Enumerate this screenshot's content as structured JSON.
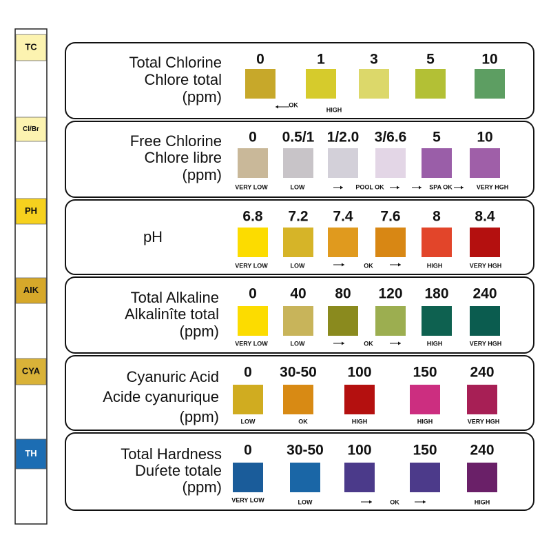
{
  "strip": {
    "pads": [
      {
        "label": "TC",
        "color": "#fcf3b0"
      },
      {
        "label": "Cl/Br",
        "color": "#fcf3b0"
      },
      {
        "label": "PH",
        "color": "#f6d11e"
      },
      {
        "label": "AIK",
        "color": "#d6a82a"
      },
      {
        "label": "CYA",
        "color": "#d9b238"
      },
      {
        "label": "TH",
        "color": "#1c6db3"
      }
    ]
  },
  "panels": [
    {
      "title": [
        "Total Chlorine",
        "Chlore total",
        "(ppm)"
      ],
      "swatches": [
        {
          "value": "0",
          "color": "#c7a82a"
        },
        {
          "value": "1",
          "color": "#d6cb2c"
        },
        {
          "value": "3",
          "color": "#dcd86a"
        },
        {
          "value": "5",
          "color": "#b3c035"
        },
        {
          "value": "10",
          "color": "#5d9e62"
        }
      ],
      "notes": [
        "OK",
        "HIGH"
      ]
    },
    {
      "title": [
        "Free Chlorine",
        "Chlore libre",
        "(ppm)"
      ],
      "swatches": [
        {
          "value": "0",
          "color": "#c9b899"
        },
        {
          "value": "0.5/1",
          "color": "#c8c4c8"
        },
        {
          "value": "1/2.0",
          "color": "#d3d0d9"
        },
        {
          "value": "3/6.6",
          "color": "#e3d6e6"
        },
        {
          "value": "5",
          "color": "#9a5ea8"
        },
        {
          "value": "10",
          "color": "#9f5fa8"
        }
      ],
      "notes": [
        "VERY LOW",
        "LOW",
        "POOL OK",
        "SPA OK",
        "VERY HGH"
      ]
    },
    {
      "title": [
        "pH"
      ],
      "swatches": [
        {
          "value": "6.8",
          "color": "#fcdc00"
        },
        {
          "value": "7.2",
          "color": "#d6b428"
        },
        {
          "value": "7.4",
          "color": "#e09a1e"
        },
        {
          "value": "7.6",
          "color": "#d88714"
        },
        {
          "value": "8",
          "color": "#e2452a"
        },
        {
          "value": "8.4",
          "color": "#b4100f"
        }
      ],
      "notes": [
        "VERY LOW",
        "LOW",
        "OK",
        "HIGH",
        "VERY HGH"
      ]
    },
    {
      "title": [
        "Total Alkaline",
        "Alkalinîte total",
        "(ppm)"
      ],
      "swatches": [
        {
          "value": "0",
          "color": "#fcdc00"
        },
        {
          "value": "40",
          "color": "#c8b45a"
        },
        {
          "value": "80",
          "color": "#8a8a1e"
        },
        {
          "value": "120",
          "color": "#9cae50"
        },
        {
          "value": "180",
          "color": "#0e6150"
        },
        {
          "value": "240",
          "color": "#0b5c4f"
        }
      ],
      "notes": [
        "VERY LOW",
        "LOW",
        "OK",
        "HIGH",
        "VERY HGH"
      ]
    },
    {
      "title": [
        "Cyanuric Acid",
        "Acide cyanurique",
        "(ppm)"
      ],
      "swatches": [
        {
          "value": "0",
          "color": "#d0ac20"
        },
        {
          "value": "30-50",
          "color": "#d88a14"
        },
        {
          "value": "100",
          "color": "#b4100f"
        },
        {
          "value": "150",
          "color": "#cc2e80"
        },
        {
          "value": "240",
          "color": "#a71f55"
        }
      ],
      "notes": [
        "LOW",
        "OK",
        "HIGH",
        "HIGH",
        "VERY HGH"
      ]
    },
    {
      "title": [
        "Total Hardness",
        "Duŕete totale",
        "(ppm)"
      ],
      "swatches": [
        {
          "value": "0",
          "color": "#1a5c9a"
        },
        {
          "value": "30-50",
          "color": "#1a66a6"
        },
        {
          "value": "100",
          "color": "#4b3a8a"
        },
        {
          "value": "150",
          "color": "#4c3a8a"
        },
        {
          "value": "240",
          "color": "#6a2068"
        }
      ],
      "notes": [
        "VERY LOW",
        "LOW",
        "OK",
        "HIGH"
      ]
    }
  ]
}
